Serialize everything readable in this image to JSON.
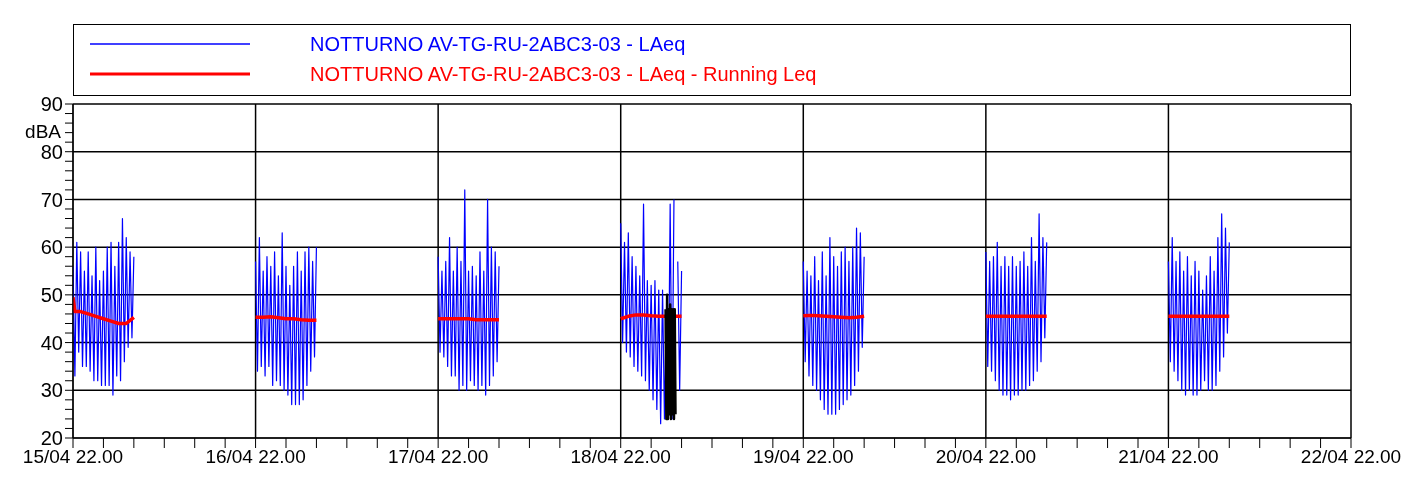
{
  "chart_data": {
    "type": "line",
    "ylabel": "dBA",
    "xlim": [
      "--04-15T22:00",
      "--04-22T22:00"
    ],
    "xticks": [
      {
        "value": "--04-15T22:00",
        "label": "15/04 22.00"
      },
      {
        "value": "--04-16T02:00",
        "label": null
      },
      {
        "value": "--04-16T06:00",
        "label": null
      },
      {
        "value": "--04-16T10:00",
        "label": null
      },
      {
        "value": "--04-16T14:00",
        "label": null
      },
      {
        "value": "--04-16T18:00",
        "label": null
      },
      {
        "value": "--04-16T22:00",
        "label": "16/04 22.00"
      },
      {
        "value": "--04-17T02:00",
        "label": null
      },
      {
        "value": "--04-17T06:00",
        "label": null
      },
      {
        "value": "--04-17T10:00",
        "label": null
      },
      {
        "value": "--04-17T14:00",
        "label": null
      },
      {
        "value": "--04-17T18:00",
        "label": null
      },
      {
        "value": "--04-17T22:00",
        "label": "17/04 22.00"
      },
      {
        "value": "--04-18T02:00",
        "label": null
      },
      {
        "value": "--04-18T06:00",
        "label": null
      },
      {
        "value": "--04-18T10:00",
        "label": null
      },
      {
        "value": "--04-18T14:00",
        "label": null
      },
      {
        "value": "--04-18T18:00",
        "label": null
      },
      {
        "value": "--04-18T22:00",
        "label": "18/04 22.00"
      },
      {
        "value": "--04-19T02:00",
        "label": null
      },
      {
        "value": "--04-19T06:00",
        "label": null
      },
      {
        "value": "--04-19T10:00",
        "label": null
      },
      {
        "value": "--04-19T14:00",
        "label": null
      },
      {
        "value": "--04-19T18:00",
        "label": null
      },
      {
        "value": "--04-19T22:00",
        "label": "19/04 22.00"
      },
      {
        "value": "--04-20T02:00",
        "label": null
      },
      {
        "value": "--04-20T06:00",
        "label": null
      },
      {
        "value": "--04-20T10:00",
        "label": null
      },
      {
        "value": "--04-20T14:00",
        "label": null
      },
      {
        "value": "--04-20T18:00",
        "label": null
      },
      {
        "value": "--04-20T22:00",
        "label": "20/04 22.00"
      },
      {
        "value": "--04-21T02:00",
        "label": null
      },
      {
        "value": "--04-21T06:00",
        "label": null
      },
      {
        "value": "--04-21T10:00",
        "label": null
      },
      {
        "value": "--04-21T14:00",
        "label": null
      },
      {
        "value": "--04-21T18:00",
        "label": null
      },
      {
        "value": "--04-21T22:00",
        "label": "21/04 22.00"
      },
      {
        "value": "--04-22T02:00",
        "label": null
      },
      {
        "value": "--04-22T06:00",
        "label": null
      },
      {
        "value": "--04-22T10:00",
        "label": null
      },
      {
        "value": "--04-22T14:00",
        "label": null
      },
      {
        "value": "--04-22T18:00",
        "label": null
      },
      {
        "value": "--04-22T22:00",
        "label": "22/04 22.00"
      }
    ],
    "ylim": [
      20,
      90
    ],
    "yticks": [
      20,
      {
        "value": 22,
        "label": null
      },
      {
        "value": 24,
        "label": null
      },
      {
        "value": 26,
        "label": null
      },
      {
        "value": 28,
        "label": null
      },
      30,
      {
        "value": 32,
        "label": null
      },
      {
        "value": 34,
        "label": null
      },
      {
        "value": 36,
        "label": null
      },
      {
        "value": 38,
        "label": null
      },
      40,
      {
        "value": 42,
        "label": null
      },
      {
        "value": 44,
        "label": null
      },
      {
        "value": 46,
        "label": null
      },
      {
        "value": 48,
        "label": null
      },
      50,
      {
        "value": 52,
        "label": null
      },
      {
        "value": 54,
        "label": null
      },
      {
        "value": 56,
        "label": null
      },
      {
        "value": 58,
        "label": null
      },
      60,
      {
        "value": 62,
        "label": null
      },
      {
        "value": 64,
        "label": null
      },
      {
        "value": 66,
        "label": null
      },
      {
        "value": 68,
        "label": null
      },
      70,
      {
        "value": 72,
        "label": null
      },
      {
        "value": 74,
        "label": null
      },
      {
        "value": 76,
        "label": null
      },
      {
        "value": 78,
        "label": null
      },
      80,
      {
        "value": 82,
        "label": null
      },
      {
        "value": 84,
        "label": null
      },
      {
        "value": 86,
        "label": null
      },
      {
        "value": 88,
        "label": null
      },
      90
    ],
    "grid": true,
    "legend": "top",
    "marker": "none",
    "line_style": "solid",
    "series": [
      {
        "name": "NOTTURNO AV-TG-RU-2ABC3-03 - LAeq",
        "color": "#0000ff",
        "x": [
          "--04-15T22:00",
          "--04-15T22:15",
          "--04-15T22:30",
          "--04-15T22:45",
          "--04-15T23:00",
          "--04-15T23:15",
          "--04-15T23:30",
          "--04-15T23:45",
          "--04-16T00:00",
          "--04-16T00:15",
          "--04-16T00:30",
          "--04-16T00:45",
          "--04-16T01:00",
          "--04-16T01:15",
          "--04-16T01:30",
          "--04-16T01:45",
          "--04-16T02:00",
          "--04-16T02:15",
          "--04-16T02:30",
          "--04-16T02:45",
          "--04-16T03:00",
          "--04-16T03:15",
          "--04-16T03:30",
          "--04-16T03:45",
          "--04-16T04:00",
          "--04-16T04:15",
          "--04-16T04:30",
          "--04-16T04:45",
          "--04-16T05:00",
          "--04-16T05:15",
          "--04-16T05:30",
          "--04-16T05:45",
          "--04-16T06:00",
          "--04-16T10:00",
          "--04-16T22:00",
          "--04-16T22:15",
          "--04-16T22:30",
          "--04-16T22:45",
          "--04-16T23:00",
          "--04-16T23:15",
          "--04-16T23:30",
          "--04-16T23:45",
          "--04-17T00:00",
          "--04-17T00:15",
          "--04-17T00:30",
          "--04-17T00:45",
          "--04-17T01:00",
          "--04-17T01:15",
          "--04-17T01:30",
          "--04-17T01:45",
          "--04-17T02:00",
          "--04-17T02:15",
          "--04-17T02:30",
          "--04-17T02:45",
          "--04-17T03:00",
          "--04-17T03:15",
          "--04-17T03:30",
          "--04-17T03:45",
          "--04-17T04:00",
          "--04-17T04:15",
          "--04-17T04:30",
          "--04-17T04:45",
          "--04-17T05:00",
          "--04-17T05:15",
          "--04-17T05:30",
          "--04-17T05:45",
          "--04-17T06:00",
          "--04-17T10:00",
          "--04-17T22:00",
          "--04-17T22:15",
          "--04-17T22:30",
          "--04-17T22:45",
          "--04-17T23:00",
          "--04-17T23:15",
          "--04-17T23:30",
          "--04-17T23:45",
          "--04-18T00:00",
          "--04-18T00:15",
          "--04-18T00:30",
          "--04-18T00:45",
          "--04-18T01:00",
          "--04-18T01:15",
          "--04-18T01:30",
          "--04-18T01:45",
          "--04-18T02:00",
          "--04-18T02:15",
          "--04-18T02:30",
          "--04-18T02:45",
          "--04-18T03:00",
          "--04-18T03:15",
          "--04-18T03:30",
          "--04-18T03:45",
          "--04-18T04:00",
          "--04-18T04:15",
          "--04-18T04:30",
          "--04-18T04:45",
          "--04-18T05:00",
          "--04-18T05:15",
          "--04-18T05:30",
          "--04-18T05:45",
          "--04-18T06:00",
          "--04-18T10:00",
          "--04-18T22:00",
          "--04-18T22:15",
          "--04-18T22:30",
          "--04-18T22:45",
          "--04-18T23:00",
          "--04-18T23:15",
          "--04-18T23:30",
          "--04-18T23:45",
          "--04-19T00:00",
          "--04-19T00:15",
          "--04-19T00:30",
          "--04-19T00:45",
          "--04-19T01:00",
          "--04-19T01:15",
          "--04-19T01:30",
          "--04-19T01:45",
          "--04-19T02:00",
          "--04-19T02:15",
          "--04-19T02:30",
          "--04-19T02:45",
          "--04-19T03:00",
          "--04-19T03:15",
          "--04-19T03:30",
          "--04-19T03:45",
          "--04-19T04:00",
          "--04-19T04:15",
          "--04-19T04:30",
          "--04-19T04:45",
          "--04-19T05:00",
          "--04-19T05:15",
          "--04-19T05:30",
          "--04-19T05:45",
          "--04-19T06:00",
          "--04-19T10:00",
          "--04-19T22:00",
          "--04-19T22:15",
          "--04-19T22:30",
          "--04-19T22:45",
          "--04-19T23:00",
          "--04-19T23:15",
          "--04-19T23:30",
          "--04-19T23:45",
          "--04-20T00:00",
          "--04-20T00:15",
          "--04-20T00:30",
          "--04-20T00:45",
          "--04-20T01:00",
          "--04-20T01:15",
          "--04-20T01:30",
          "--04-20T01:45",
          "--04-20T02:00",
          "--04-20T02:15",
          "--04-20T02:30",
          "--04-20T02:45",
          "--04-20T03:00",
          "--04-20T03:15",
          "--04-20T03:30",
          "--04-20T03:45",
          "--04-20T04:00",
          "--04-20T04:15",
          "--04-20T04:30",
          "--04-20T04:45",
          "--04-20T05:00",
          "--04-20T05:15",
          "--04-20T05:30",
          "--04-20T05:45",
          "--04-20T06:00",
          "--04-20T10:00",
          "--04-20T22:00",
          "--04-20T22:15",
          "--04-20T22:30",
          "--04-20T22:45",
          "--04-20T23:00",
          "--04-20T23:15",
          "--04-20T23:30",
          "--04-20T23:45",
          "--04-21T00:00",
          "--04-21T00:15",
          "--04-21T00:30",
          "--04-21T00:45",
          "--04-21T01:00",
          "--04-21T01:15",
          "--04-21T01:30",
          "--04-21T01:45",
          "--04-21T02:00",
          "--04-21T02:15",
          "--04-21T02:30",
          "--04-21T02:45",
          "--04-21T03:00",
          "--04-21T03:15",
          "--04-21T03:30",
          "--04-21T03:45",
          "--04-21T04:00",
          "--04-21T04:15",
          "--04-21T04:30",
          "--04-21T04:45",
          "--04-21T05:00",
          "--04-21T05:15",
          "--04-21T05:30",
          "--04-21T05:45",
          "--04-21T06:00",
          "--04-21T10:00",
          "--04-21T22:00",
          "--04-21T22:15",
          "--04-21T22:30",
          "--04-21T22:45",
          "--04-21T23:00",
          "--04-21T23:15",
          "--04-21T23:30",
          "--04-21T23:45",
          "--04-22T00:00",
          "--04-22T00:15",
          "--04-22T00:30",
          "--04-22T00:45",
          "--04-22T01:00",
          "--04-22T01:15",
          "--04-22T01:30",
          "--04-22T01:45",
          "--04-22T02:00",
          "--04-22T02:15",
          "--04-22T02:30",
          "--04-22T02:45",
          "--04-22T03:00",
          "--04-22T03:15",
          "--04-22T03:30",
          "--04-22T03:45",
          "--04-22T04:00",
          "--04-22T04:15",
          "--04-22T04:30",
          "--04-22T04:45",
          "--04-22T05:00",
          "--04-22T05:15",
          "--04-22T05:30",
          "--04-22T05:45",
          "--04-22T06:00"
        ],
        "values": [
          56,
          33,
          61,
          38,
          59,
          35,
          55,
          35,
          59,
          34,
          54,
          32,
          60,
          32,
          53,
          31,
          55,
          31,
          60,
          31,
          61,
          29,
          56,
          33,
          61,
          32,
          66,
          36,
          62,
          39,
          59,
          41,
          58,
          null,
          57,
          34,
          62,
          35,
          55,
          33,
          58,
          35,
          56,
          31,
          59,
          32,
          54,
          31,
          63,
          30,
          56,
          29,
          52,
          27,
          56,
          27,
          59,
          27,
          55,
          28,
          59,
          31,
          60,
          34,
          57,
          37,
          60,
          null,
          58,
          38,
          55,
          37,
          57,
          35,
          62,
          33,
          55,
          33,
          60,
          30,
          57,
          31,
          72,
          30,
          55,
          32,
          56,
          31,
          54,
          30,
          59,
          31,
          55,
          29,
          70,
          31,
          60,
          33,
          59,
          36,
          56,
          null,
          65,
          40,
          61,
          38,
          63,
          37,
          58,
          35,
          56,
          34,
          54,
          33,
          69,
          32,
          53,
          30,
          52,
          28,
          53,
          26,
          51,
          23,
          51,
          24,
          47,
          24,
          69,
          24,
          70,
          null,
          57,
          30,
          55,
          null,
          57,
          36,
          55,
          33,
          54,
          31,
          58,
          30,
          53,
          28,
          59,
          26,
          54,
          25,
          62,
          25,
          58,
          25,
          56,
          26,
          59,
          27,
          60,
          28,
          57,
          29,
          60,
          31,
          64,
          34,
          63,
          39,
          58,
          null,
          59,
          35,
          57,
          34,
          58,
          32,
          61,
          30,
          56,
          29,
          58,
          29,
          56,
          28,
          58,
          29,
          56,
          29,
          57,
          30,
          59,
          30,
          56,
          31,
          62,
          32,
          57,
          34,
          67,
          36,
          62,
          41,
          61,
          null,
          57,
          36,
          62,
          34,
          57,
          32,
          59,
          30,
          55,
          29,
          58,
          30,
          54,
          29,
          57,
          29,
          55,
          30,
          51,
          32,
          54,
          30,
          58,
          30,
          55,
          31,
          62,
          34,
          67,
          37,
          64,
          42,
          61
        ]
      },
      {
        "name": "NOTTURNO AV-TG-RU-2ABC3-03 - LAeq - Running Leq",
        "color": "#ff0000",
        "x": [
          "--04-15T22:00",
          "--04-15T22:15",
          "--04-15T23:00",
          "--04-16T00:00",
          "--04-16T01:00",
          "--04-16T02:00",
          "--04-16T03:00",
          "--04-16T04:00",
          "--04-16T05:00",
          "--04-16T06:00",
          "--04-16T10:00",
          "--04-16T22:00",
          "--04-16T23:00",
          "--04-17T00:00",
          "--04-17T01:00",
          "--04-17T02:00",
          "--04-17T03:00",
          "--04-17T04:00",
          "--04-17T05:00",
          "--04-17T06:00",
          "--04-17T10:00",
          "--04-17T22:00",
          "--04-17T23:00",
          "--04-18T00:00",
          "--04-18T01:00",
          "--04-18T02:00",
          "--04-18T03:00",
          "--04-18T04:00",
          "--04-18T05:00",
          "--04-18T06:00",
          "--04-18T10:00",
          "--04-18T22:00",
          "--04-18T23:00",
          "--04-19T00:00",
          "--04-19T01:00",
          "--04-19T02:00",
          "--04-19T03:00",
          "--04-19T04:00",
          "--04-19T05:00",
          "--04-19T06:00",
          "--04-19T10:00",
          "--04-19T22:00",
          "--04-19T23:00",
          "--04-20T00:00",
          "--04-20T01:00",
          "--04-20T02:00",
          "--04-20T03:00",
          "--04-20T04:00",
          "--04-20T05:00",
          "--04-20T06:00",
          "--04-20T10:00",
          "--04-20T22:00",
          "--04-20T23:00",
          "--04-21T00:00",
          "--04-21T01:00",
          "--04-21T02:00",
          "--04-21T03:00",
          "--04-21T04:00",
          "--04-21T05:00",
          "--04-21T06:00",
          "--04-21T10:00",
          "--04-21T22:00",
          "--04-21T23:00",
          "--04-22T00:00",
          "--04-22T01:00",
          "--04-22T02:00",
          "--04-22T03:00",
          "--04-22T04:00",
          "--04-22T05:00",
          "--04-22T06:00"
        ],
        "values": [
          49.5,
          46.5,
          46.5,
          46,
          45.5,
          45,
          44.5,
          44,
          44,
          45.3,
          null,
          45.3,
          45.3,
          45.4,
          45.2,
          45,
          45,
          44.8,
          44.7,
          44.7,
          null,
          45,
          45,
          45,
          45,
          45,
          44.8,
          44.8,
          44.8,
          44.8,
          null,
          45,
          45.5,
          45.8,
          45.8,
          45.6,
          45.5,
          45.5,
          45.5,
          45.5,
          null,
          45.6,
          45.7,
          45.6,
          45.5,
          45.4,
          45.3,
          45.2,
          45.3,
          45.5,
          null,
          45.5,
          45.5,
          45.5,
          45.5,
          45.5,
          45.5,
          45.5,
          45.5,
          45.5,
          null,
          45.5,
          45.5,
          45.5,
          45.5,
          45.5,
          45.5,
          45.5,
          45.5,
          45.5
        ]
      },
      {
        "color": "#000000",
        "x": [
          "--04-19T03:54",
          "--04-19T04:00",
          "--04-19T04:06",
          "--04-19T04:12",
          "--04-19T04:18",
          "--04-19T04:24",
          "--04-19T04:30",
          "--04-19T04:36",
          "--04-19T04:42",
          "--04-19T04:48",
          "--04-19T04:54",
          "--04-19T05:00",
          "--04-19T05:06",
          "--04-19T05:12"
        ],
        "values": [
          47,
          24,
          50,
          24,
          47,
          25,
          48,
          24,
          47,
          25,
          47,
          24,
          47,
          25
        ]
      }
    ]
  }
}
